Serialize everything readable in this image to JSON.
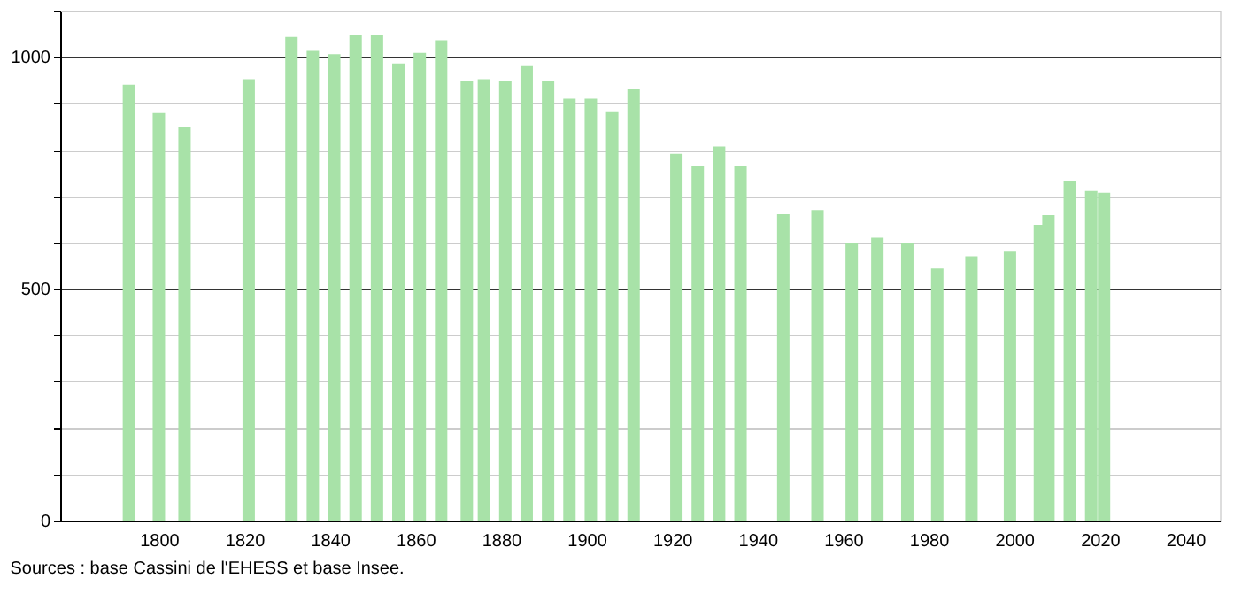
{
  "chart_data": {
    "type": "bar",
    "color": "#a8e2a8",
    "x": [
      1793,
      1800,
      1806,
      1821,
      1831,
      1836,
      1841,
      1846,
      1851,
      1856,
      1861,
      1866,
      1872,
      1876,
      1881,
      1886,
      1891,
      1896,
      1901,
      1906,
      1911,
      1921,
      1926,
      1931,
      1936,
      1946,
      1954,
      1962,
      1968,
      1975,
      1982,
      1990,
      1999,
      2006,
      2008,
      2013,
      2018,
      2021
    ],
    "values": [
      940,
      879,
      848,
      952,
      1043,
      1013,
      1006,
      1047,
      1047,
      986,
      1009,
      1036,
      949,
      952,
      948,
      982,
      948,
      910,
      910,
      883,
      931,
      791,
      764,
      807,
      764,
      661,
      670,
      599,
      610,
      599,
      544,
      570,
      580,
      638,
      659,
      732,
      711,
      707
    ],
    "xlim": [
      1779,
      2046
    ],
    "xticks": [
      1800,
      1820,
      1840,
      1860,
      1880,
      1900,
      1920,
      1940,
      1960,
      1980,
      2000,
      2020,
      2040
    ],
    "ylim": [
      0,
      1100
    ],
    "yticks": [
      0,
      {
        "value": 100,
        "label": null
      },
      {
        "value": 200,
        "label": null
      },
      {
        "value": 300,
        "label": null
      },
      {
        "value": 400,
        "label": null
      },
      500,
      {
        "value": 600,
        "label": null
      },
      {
        "value": 700,
        "label": null
      },
      {
        "value": 800,
        "label": null
      },
      {
        "value": 900,
        "label": null
      },
      1000,
      {
        "value": 1100,
        "label": null
      }
    ],
    "grid": "y",
    "annotations": [
      "Sources : base Cassini de l'EHESS et base Insee."
    ]
  }
}
